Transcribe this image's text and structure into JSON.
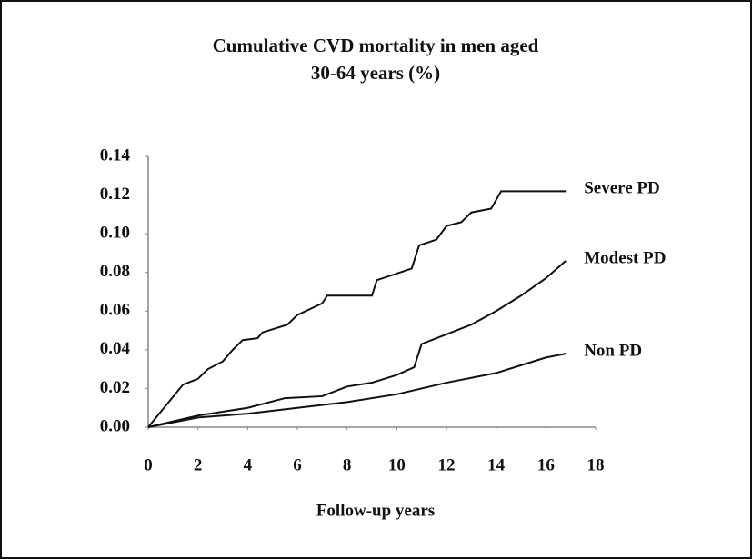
{
  "chart_data": {
    "type": "line",
    "title": [
      "Cumulative CVD mortality in men aged",
      "30-64 years (%)"
    ],
    "x_label": "Follow-up years",
    "xlim": [
      0,
      18
    ],
    "xticks": [
      0,
      2,
      4,
      6,
      8,
      10,
      12,
      14,
      16,
      18
    ],
    "ylim": [
      0,
      0.14
    ],
    "yticks": [
      {
        "value": 0,
        "label": "0.00"
      },
      {
        "value": 0.02,
        "label": "0.02"
      },
      {
        "value": 0.04,
        "label": "0.04"
      },
      {
        "value": 0.06,
        "label": "0.06"
      },
      {
        "value": 0.08,
        "label": "0.08"
      },
      {
        "value": 0.1,
        "label": "0.10"
      },
      {
        "value": 0.12,
        "label": "0.12"
      },
      {
        "value": 0.14,
        "label": "0.14"
      }
    ],
    "grid": false,
    "series": [
      {
        "name": "Severe PD",
        "color": "#111111",
        "x": [
          0,
          1.4,
          2.0,
          2.4,
          3.0,
          3.4,
          3.8,
          4.4,
          4.6,
          5.6,
          6.0,
          7.0,
          7.2,
          9.0,
          9.2,
          10.6,
          10.9,
          11.6,
          12.0,
          12.6,
          13.0,
          13.8,
          14.2,
          16.8
        ],
        "values": [
          0,
          0.022,
          0.025,
          0.03,
          0.034,
          0.04,
          0.045,
          0.046,
          0.049,
          0.053,
          0.058,
          0.064,
          0.068,
          0.068,
          0.076,
          0.082,
          0.094,
          0.097,
          0.104,
          0.106,
          0.111,
          0.113,
          0.122,
          0.122
        ]
      },
      {
        "name": "Modest PD",
        "color": "#111111",
        "x": [
          0,
          2,
          4,
          5.5,
          7,
          8,
          9,
          10,
          10.7,
          11,
          12,
          13,
          14,
          15,
          16,
          16.8
        ],
        "values": [
          0,
          0.006,
          0.01,
          0.015,
          0.016,
          0.021,
          0.023,
          0.027,
          0.031,
          0.043,
          0.048,
          0.053,
          0.06,
          0.068,
          0.077,
          0.086
        ]
      },
      {
        "name": "Non PD",
        "color": "#111111",
        "x": [
          0,
          2,
          4,
          6,
          8,
          10,
          12,
          14,
          15,
          16,
          16.8
        ],
        "values": [
          0,
          0.005,
          0.007,
          0.01,
          0.013,
          0.017,
          0.023,
          0.028,
          0.032,
          0.036,
          0.038
        ]
      }
    ]
  }
}
